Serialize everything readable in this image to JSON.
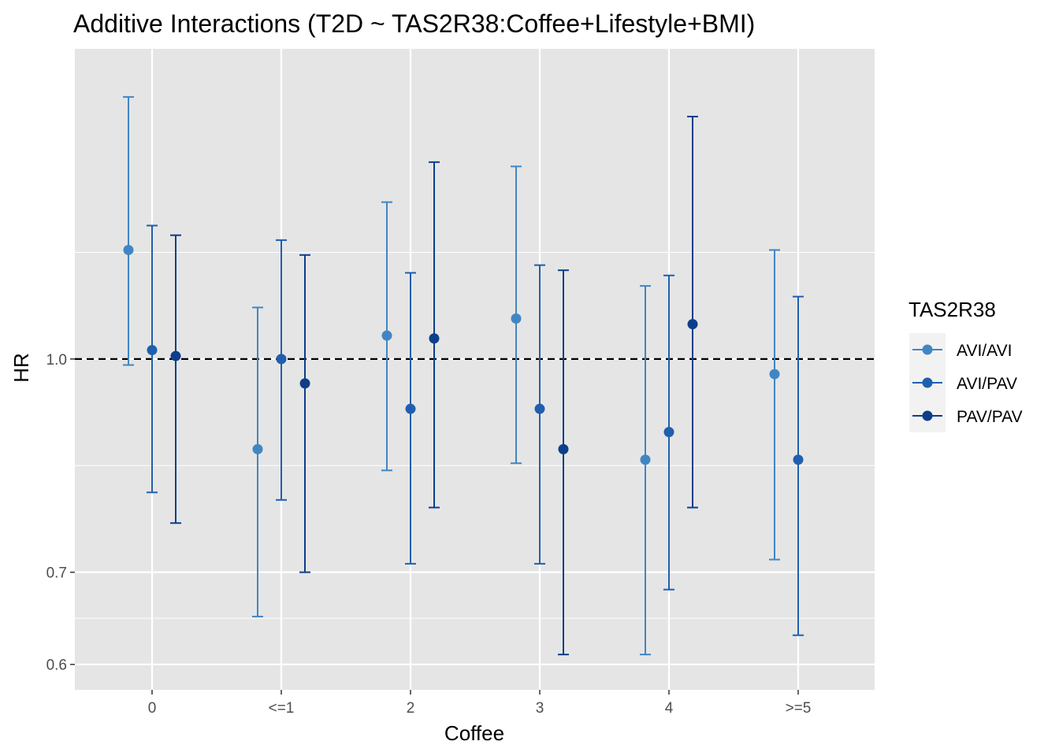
{
  "chart_data": {
    "type": "scatter",
    "title": "Additive Interactions (T2D ~ TAS2R38:Coffee+Lifestyle+BMI)",
    "xlabel": "Coffee",
    "ylabel": "HR",
    "categories": [
      "0",
      "<=1",
      "2",
      "3",
      "4",
      ">=5"
    ],
    "y_scale": "log",
    "ylim": [
      0.575,
      1.68
    ],
    "y_ticks": [
      0.6,
      0.7,
      1.0
    ],
    "y_tick_labels": [
      "0.6",
      "0.7",
      "1.0"
    ],
    "reference_line": {
      "y": 1.0,
      "style": "dashed"
    },
    "legend": {
      "title": "TAS2R38",
      "placement": "right"
    },
    "series": [
      {
        "name": "AVI/AVI",
        "color": "#4186C2",
        "points": [
          {
            "category": "0",
            "hr": 1.2,
            "lower": 0.99,
            "upper": 1.55
          },
          {
            "category": "<=1",
            "hr": 0.86,
            "lower": 0.65,
            "upper": 1.09
          },
          {
            "category": "2",
            "hr": 1.04,
            "lower": 0.83,
            "upper": 1.3
          },
          {
            "category": "3",
            "hr": 1.07,
            "lower": 0.84,
            "upper": 1.38
          },
          {
            "category": "4",
            "hr": 0.845,
            "lower": 0.61,
            "upper": 1.13
          },
          {
            "category": ">=5",
            "hr": 0.975,
            "lower": 0.715,
            "upper": 1.2
          }
        ]
      },
      {
        "name": "AVI/PAV",
        "color": "#1F5FAE",
        "points": [
          {
            "category": "0",
            "hr": 1.015,
            "lower": 0.8,
            "upper": 1.25
          },
          {
            "category": "<=1",
            "hr": 1.0,
            "lower": 0.79,
            "upper": 1.22
          },
          {
            "category": "2",
            "hr": 0.92,
            "lower": 0.71,
            "upper": 1.155
          },
          {
            "category": "3",
            "hr": 0.92,
            "lower": 0.71,
            "upper": 1.17
          },
          {
            "category": "4",
            "hr": 0.885,
            "lower": 0.68,
            "upper": 1.15
          },
          {
            "category": ">=5",
            "hr": 0.845,
            "lower": 0.63,
            "upper": 1.11
          }
        ]
      },
      {
        "name": "PAV/PAV",
        "color": "#0D3E8A",
        "points": [
          {
            "category": "0",
            "hr": 1.005,
            "lower": 0.76,
            "upper": 1.23
          },
          {
            "category": "<=1",
            "hr": 0.96,
            "lower": 0.7,
            "upper": 1.19
          },
          {
            "category": "2",
            "hr": 1.035,
            "lower": 0.78,
            "upper": 1.39
          },
          {
            "category": "3",
            "hr": 0.86,
            "lower": 0.61,
            "upper": 1.16
          },
          {
            "category": "4",
            "hr": 1.06,
            "lower": 0.78,
            "upper": 1.5
          },
          {
            "category": ">=5",
            "hr": null,
            "lower": null,
            "upper": null
          }
        ]
      }
    ],
    "panel_background": "#E5E5E5",
    "grid": true
  }
}
